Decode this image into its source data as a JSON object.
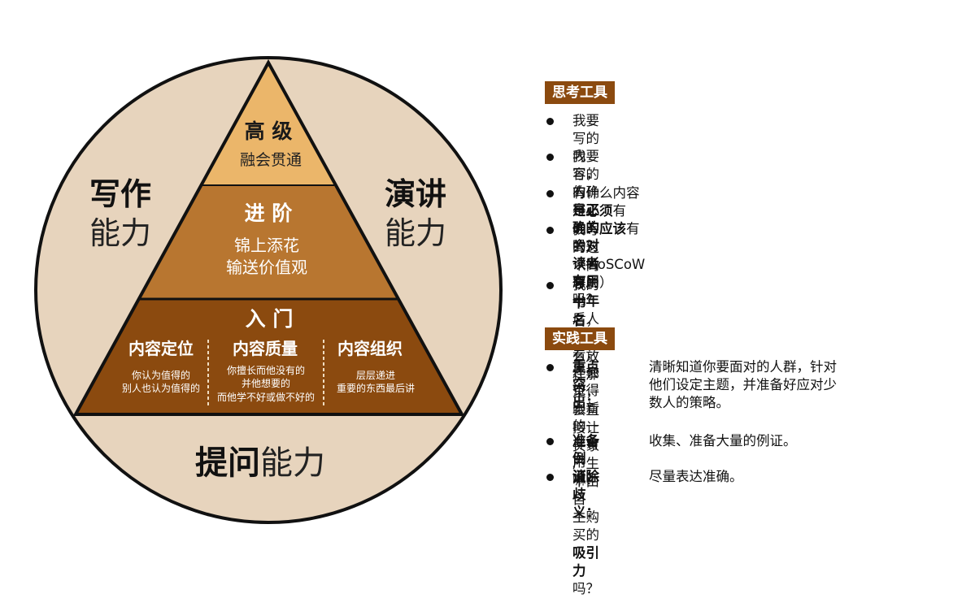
{
  "colors": {
    "circle_fill": "#E7D4BD",
    "outline": "#111111",
    "tier_top": "#EBB66A",
    "tier_mid": "#B87630",
    "tier_bottom": "#8B4A0F",
    "tag_bg": "#8B4A0F"
  },
  "circle": {
    "writing": {
      "bold": "写作",
      "rest": "能力"
    },
    "speaking": {
      "bold": "演讲",
      "rest": "能力"
    },
    "asking": {
      "bold": "提问",
      "rest": "能力"
    }
  },
  "pyramid": {
    "top": {
      "title": "高 级",
      "subtitle": "融会贯通"
    },
    "middle": {
      "title": "进 阶",
      "line1": "锦上添花",
      "line2": "输送价值观"
    },
    "bottom": {
      "title": "入 门",
      "columns": [
        {
          "title": "内容定位",
          "lines": [
            "你认为值得的",
            "别人也认为值得的"
          ]
        },
        {
          "title": "内容质量",
          "lines": [
            "你擅长而他没有的",
            "并他想要的",
            "而他学不好或做不好的"
          ]
        },
        {
          "title": "内容组织",
          "lines": [
            "层层递进",
            "重要的东西最后讲"
          ]
        }
      ]
    }
  },
  "thinking_tools": {
    "heading": "思考工具",
    "items": [
      {
        "lines": [
          [
            "我要写的内容，的确是",
            "正确的",
            "吗？"
          ]
        ]
      },
      {
        "lines": [
          [
            "我要写的内容，确实会",
            "对读者有用",
            "吗？"
          ]
        ]
      },
      {
        "lines": [
          [
            "有什么内容是",
            "必须",
            "有的、",
            "应该",
            "有的？  （MoSCoW原则）"
          ]
        ]
      },
      {
        "lines": [
          [
            "我写的这个内容，",
            "十年",
            "后人们再看，还会觉得跟新的一"
          ],
          [
            "样有用嘛？"
          ]
        ]
      },
      {
        "lines": [
          [
            "我的",
            "书名",
            "，就那么放在那里，会直接让买家产生不由自"
          ],
          [
            "主购买的",
            "吸引力",
            "吗？"
          ]
        ]
      }
    ]
  },
  "practice_tools": {
    "heading": "实践工具",
    "items": [
      {
        "label": "重点突出：",
        "lines": [
          "清晰知道你要面对的人群，针对",
          "他们设定主题，并准备好应对少",
          "数人的策略。"
        ]
      },
      {
        "label": "准备例证：",
        "lines": [
          "收集、准备大量的例证。"
        ]
      },
      {
        "label": "消除歧义：",
        "lines": [
          "尽量表达准确。"
        ]
      }
    ]
  }
}
